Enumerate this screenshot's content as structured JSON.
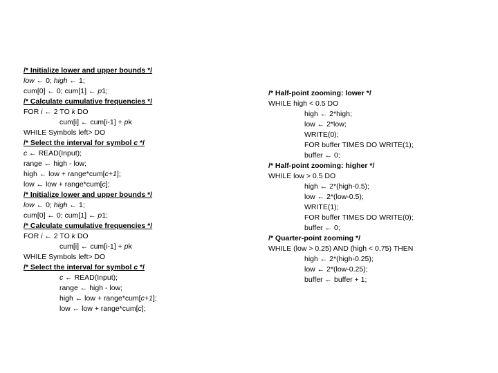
{
  "left": {
    "c1": "/* Initialize lower and upper bounds */",
    "l1a": "low",
    "l1b": " ← 0; ",
    "l1c": "high",
    "l1d": " ← 1;",
    "l2a": "cum[0] ← 0; cum[1] ← ",
    "l2b": "p",
    "l2c": "1;",
    "c2": "/* Calculate cumulative frequencies */",
    "l3a": "FOR ",
    "l3b": "i",
    "l3c": " ← 2 TO ",
    "l3d": "k",
    "l3e": " DO",
    "l4a": "cum[i] ← cum[i-1] + ",
    "l4b": "p",
    "l4c": "k",
    "l5": "WHILE Symbols left> DO",
    "c3a": "/* Select the interval for symbol ",
    "c3b": "c ",
    "c3c": "*/",
    "l6a": "c",
    "l6b": " ← READ(Input);",
    "l7": "range ← high - low;",
    "l8a": "high ← low + range*cum[",
    "l8b": "c+1",
    "l8c": "];",
    "l9a": "low ← low + range*cum[",
    "l9b": "c",
    "l9c": "];",
    "c4": "/* Initialize lower and upper bounds */",
    "l10a": "low",
    "l10b": " ← 0; ",
    "l10c": "high",
    "l10d": " ← 1;",
    "l11a": "cum[0] ← 0; cum[1] ← ",
    "l11b": "p",
    "l11c": "1;",
    "c5": "/* Calculate cumulative frequencies */",
    "l12a": "FOR ",
    "l12b": "i",
    "l12c": " ← 2 TO ",
    "l12d": "k",
    "l12e": " DO",
    "l13a": "cum[i] ← cum[i-1] + ",
    "l13b": "p",
    "l13c": "k",
    "l14": "WHILE Symbols left> DO",
    "c6a": "/* Select the interval for symbol ",
    "c6b": "c ",
    "c6c": "*/",
    "l15a": "c",
    "l15b": " ← READ(Input);",
    "l16": "range ← high - low;",
    "l17a": "high ← low + range*cum[",
    "l17b": "c+1",
    "l17c": "];",
    "l18a": "low ← low + range*cum[",
    "l18b": "c",
    "l18c": "];"
  },
  "right": {
    "c1": "/* Half-point zooming: lower */",
    "r1": "WHILE high < 0.5 DO",
    "r2": "high ← 2*high;",
    "r3": "low ← 2*low;",
    "r4": "WRITE(0);",
    "r5": "FOR buffer TIMES DO WRITE(1);",
    "r6": "buffer ← 0;",
    "c2": "/* Half-point zooming: higher */",
    "r7": "WHILE low > 0.5 DO",
    "r8": "high ← 2*(high-0.5);",
    "r9": "low ← 2*(low-0.5);",
    "r10": "WRITE(1);",
    "r11": "FOR buffer TIMES DO WRITE(0);",
    "r12": "buffer ← 0;",
    "c3": "/* Quarter-point zooming */",
    "r13": "WHILE (low > 0.25) AND (high < 0.75) THEN",
    "r14": "high ← 2*(high-0.25);",
    "r15": "low ← 2*(low-0.25);",
    "r16": "buffer ← buffer + 1;"
  }
}
